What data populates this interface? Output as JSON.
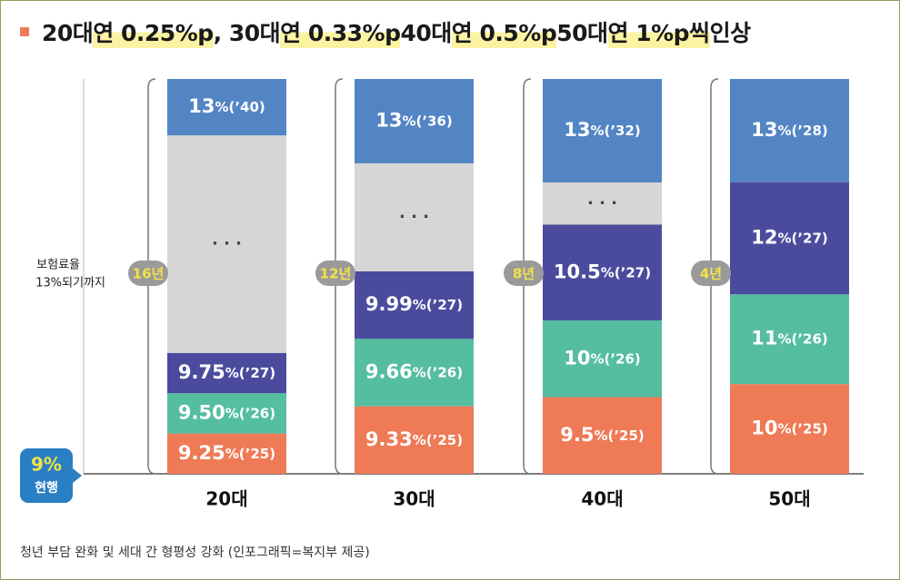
{
  "title_segments": [
    {
      "text": "20대 ",
      "hl": false
    },
    {
      "text": "연 0.25%p",
      "hl": true
    },
    {
      "text": ", 30대 ",
      "hl": false
    },
    {
      "text": "연 0.33%p",
      "hl": true
    },
    {
      "text": " 40대 ",
      "hl": false
    },
    {
      "text": "연 0.5%p",
      "hl": true
    },
    {
      "text": " 50대 ",
      "hl": false
    },
    {
      "text": "연 1%p씩",
      "hl": true
    },
    {
      "text": " 인상",
      "hl": false
    }
  ],
  "caption": "청년 부담 완화 및 세대 간 형평성 강화 (인포그래픽=복지부 제공)",
  "colors": {
    "bullet": "#ef7a57",
    "orange": "#ee7a56",
    "teal": "#55bea0",
    "indigo": "#4b4b9e",
    "blue": "#5385c4",
    "gray": "#d6d6d6",
    "badge_gray": "#9a9a9a",
    "badge_text": "#f3e24a",
    "current_badge": "#2a7ec3",
    "current_text": "#f3e24a"
  },
  "chart_data": {
    "type": "bar",
    "title": "20대 연 0.25%p, 30대 연 0.33%p 40대 연 0.5%p 50대 연 1%p씩 인상",
    "xlabel": "",
    "ylabel": "보험료율 13%되기까지",
    "y_axis_label_lines": [
      "보험료율",
      "13%되기까지"
    ],
    "current_label": {
      "value": "9%",
      "text": "현행"
    },
    "categories": [
      "20대",
      "30대",
      "40대",
      "50대"
    ],
    "ellipsis": "· · ·",
    "series": [
      {
        "category": "20대",
        "duration": "16년",
        "segments": [
          {
            "rate": "9.25%",
            "year": "(’25)",
            "color": "orange",
            "weight": 1
          },
          {
            "rate": "9.50%",
            "year": "(’26)",
            "color": "teal",
            "weight": 1
          },
          {
            "rate": "9.75%",
            "year": "(’27)",
            "color": "indigo",
            "weight": 1
          },
          {
            "rate": "",
            "year": "",
            "color": "gray",
            "weight": 5.4
          },
          {
            "rate": "13%",
            "year": "(’40)",
            "color": "blue",
            "weight": 1.4
          }
        ]
      },
      {
        "category": "30대",
        "duration": "12년",
        "segments": [
          {
            "rate": "9.33%",
            "year": "(’25)",
            "color": "orange",
            "weight": 1
          },
          {
            "rate": "9.66%",
            "year": "(’26)",
            "color": "teal",
            "weight": 1
          },
          {
            "rate": "9.99%",
            "year": "(’27)",
            "color": "indigo",
            "weight": 1
          },
          {
            "rate": "",
            "year": "",
            "color": "gray",
            "weight": 1.6
          },
          {
            "rate": "13%",
            "year": "(’36)",
            "color": "blue",
            "weight": 1.25
          }
        ]
      },
      {
        "category": "40대",
        "duration": "8년",
        "segments": [
          {
            "rate": "9.5%",
            "year": "(’25)",
            "color": "orange",
            "weight": 1
          },
          {
            "rate": "10%",
            "year": "(’26)",
            "color": "teal",
            "weight": 1
          },
          {
            "rate": "10.5%",
            "year": "(’27)",
            "color": "indigo",
            "weight": 1.25
          },
          {
            "rate": "",
            "year": "",
            "color": "gray",
            "weight": 0.55
          },
          {
            "rate": "13%",
            "year": "(’32)",
            "color": "blue",
            "weight": 1.35
          }
        ]
      },
      {
        "category": "50대",
        "duration": "4년",
        "segments": [
          {
            "rate": "10%",
            "year": "(’25)",
            "color": "orange",
            "weight": 1
          },
          {
            "rate": "11%",
            "year": "(’26)",
            "color": "teal",
            "weight": 1
          },
          {
            "rate": "12%",
            "year": "(’27)",
            "color": "indigo",
            "weight": 1.25
          },
          {
            "rate": "13%",
            "year": "(’28)",
            "color": "blue",
            "weight": 1.15
          }
        ]
      }
    ]
  }
}
